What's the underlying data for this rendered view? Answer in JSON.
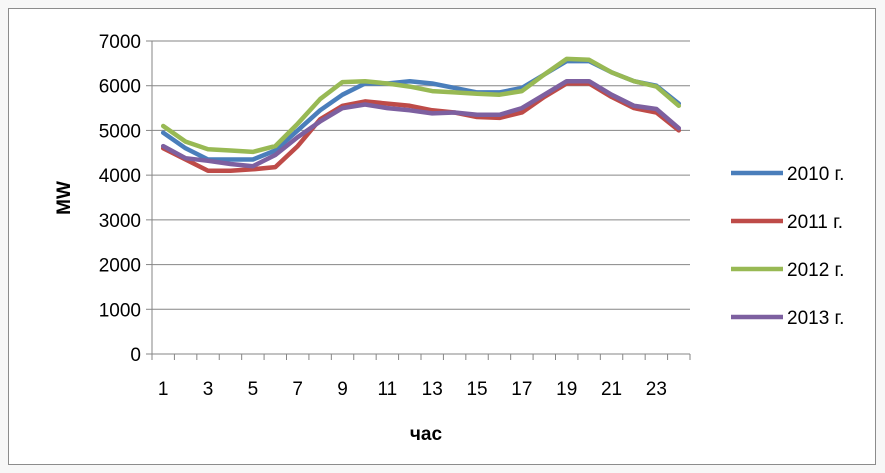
{
  "chart_data": {
    "type": "line",
    "title": "",
    "xlabel": "час",
    "ylabel": "MW",
    "ylim": [
      0,
      7000
    ],
    "yticks": [
      0,
      1000,
      2000,
      3000,
      4000,
      5000,
      6000,
      7000
    ],
    "x": [
      1,
      2,
      3,
      4,
      5,
      6,
      7,
      8,
      9,
      10,
      11,
      12,
      13,
      14,
      15,
      16,
      17,
      18,
      19,
      20,
      21,
      22,
      23,
      24
    ],
    "xtick_labels": [
      "1",
      "3",
      "5",
      "7",
      "9",
      "11",
      "13",
      "15",
      "17",
      "19",
      "21",
      "23"
    ],
    "grid": "horizontal",
    "legend": "right",
    "series": [
      {
        "name": "2010 г.",
        "color": "#4a7ebb",
        "values": [
          4950,
          4600,
          4350,
          4350,
          4350,
          4550,
          5000,
          5450,
          5800,
          6050,
          6050,
          6100,
          6050,
          5950,
          5850,
          5850,
          5950,
          6250,
          6550,
          6550,
          6300,
          6100,
          6000,
          5600
        ]
      },
      {
        "name": "2011 г.",
        "color": "#be4b48",
        "values": [
          4600,
          4350,
          4100,
          4100,
          4130,
          4180,
          4650,
          5250,
          5550,
          5650,
          5600,
          5550,
          5450,
          5400,
          5300,
          5280,
          5400,
          5750,
          6050,
          6050,
          5750,
          5500,
          5400,
          5000
        ]
      },
      {
        "name": "2012 г.",
        "color": "#98b954",
        "values": [
          5100,
          4750,
          4580,
          4550,
          4520,
          4650,
          5150,
          5700,
          6080,
          6100,
          6050,
          5980,
          5880,
          5850,
          5820,
          5800,
          5880,
          6250,
          6600,
          6580,
          6300,
          6100,
          5980,
          5550
        ]
      },
      {
        "name": "2013 г.",
        "color": "#7d60a0",
        "values": [
          4650,
          4380,
          4320,
          4250,
          4200,
          4450,
          4850,
          5200,
          5500,
          5580,
          5500,
          5450,
          5380,
          5400,
          5350,
          5350,
          5500,
          5800,
          6100,
          6100,
          5800,
          5550,
          5480,
          5050
        ]
      }
    ]
  }
}
